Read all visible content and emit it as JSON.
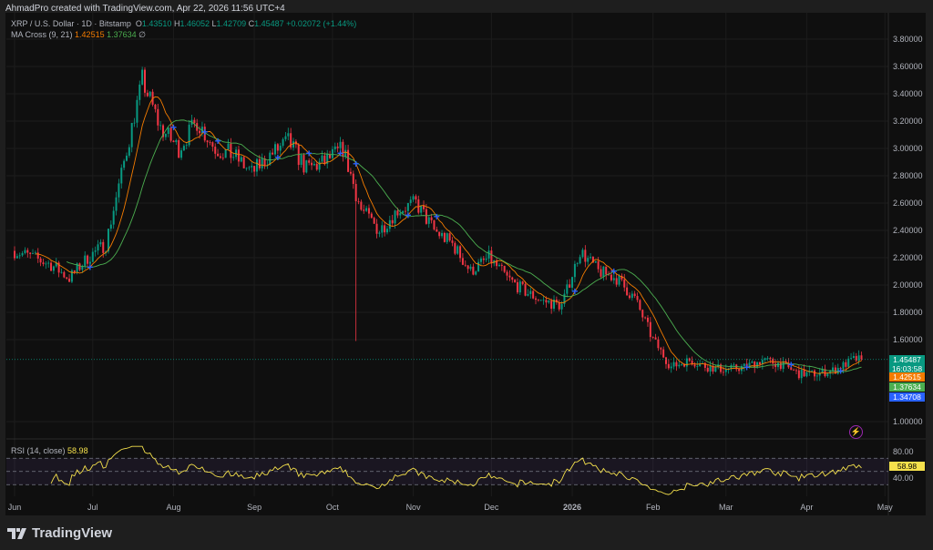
{
  "credit": "AhmadPro created with TradingView.com, Apr 22, 2026 11:56 UTC+4",
  "legend": {
    "symbol": "XRP / U.S. Dollar · 1D · Bitstamp",
    "o_label": "O",
    "o": "1.43510",
    "h_label": "H",
    "h": "1.46052",
    "l_label": "L",
    "l": "1.42709",
    "c_label": "C",
    "c": "1.45487",
    "change": "+0.02072 (+1.44%)",
    "ma_label": "MA Cross (9, 21)",
    "ma_fast": "1.42515",
    "ma_slow": "1.37634",
    "ma_icon": "∅",
    "rsi_label": "RSI (14, close)",
    "rsi_value": "58.98"
  },
  "price_tags": {
    "last": "1.45487",
    "countdown": "16:03:58",
    "ma_fast": "1.42515",
    "ma_slow": "1.37634",
    "cross": "1.34708"
  },
  "colors": {
    "up": "#089981",
    "down": "#f23645",
    "ma_fast": "#f57c00",
    "ma_slow": "#4caf50",
    "cross": "#2962ff",
    "rsi": "#f5e14c",
    "bg": "#0f0f0f"
  },
  "brand": "TradingView",
  "chart_data": {
    "type": "candlestick",
    "symbol": "XRPUSD",
    "interval": "1D",
    "yaxis_ticks": [
      "3.80000",
      "3.60000",
      "3.40000",
      "3.20000",
      "3.00000",
      "2.80000",
      "2.60000",
      "2.40000",
      "2.20000",
      "2.00000",
      "1.80000",
      "1.60000",
      "1.00000"
    ],
    "ylim": [
      0.9,
      3.9
    ],
    "xaxis_ticks": [
      "Jun",
      "Jul",
      "Aug",
      "Sep",
      "Oct",
      "Nov",
      "Dec",
      "2026",
      "Feb",
      "Mar",
      "Apr",
      "May"
    ],
    "weekly_closes_approx": [
      [
        "2025-06-01",
        2.25
      ],
      [
        "2025-06-08",
        2.2
      ],
      [
        "2025-06-15",
        2.15
      ],
      [
        "2025-06-22",
        2.05
      ],
      [
        "2025-06-29",
        2.2
      ],
      [
        "2025-07-06",
        2.3
      ],
      [
        "2025-07-13",
        2.9
      ],
      [
        "2025-07-20",
        3.5
      ],
      [
        "2025-07-27",
        3.15
      ],
      [
        "2025-08-03",
        3.0
      ],
      [
        "2025-08-10",
        3.2
      ],
      [
        "2025-08-17",
        3.0
      ],
      [
        "2025-08-24",
        2.95
      ],
      [
        "2025-08-31",
        2.82
      ],
      [
        "2025-09-07",
        2.95
      ],
      [
        "2025-09-14",
        3.05
      ],
      [
        "2025-09-21",
        2.85
      ],
      [
        "2025-09-28",
        2.9
      ],
      [
        "2025-10-05",
        3.0
      ],
      [
        "2025-10-12",
        2.55
      ],
      [
        "2025-10-19",
        2.4
      ],
      [
        "2025-10-26",
        2.55
      ],
      [
        "2025-11-02",
        2.6
      ],
      [
        "2025-11-09",
        2.4
      ],
      [
        "2025-11-16",
        2.3
      ],
      [
        "2025-11-23",
        2.1
      ],
      [
        "2025-11-30",
        2.2
      ],
      [
        "2025-12-07",
        2.05
      ],
      [
        "2025-12-14",
        1.95
      ],
      [
        "2025-12-21",
        1.88
      ],
      [
        "2025-12-28",
        1.85
      ],
      [
        "2026-01-04",
        2.25
      ],
      [
        "2026-01-11",
        2.1
      ],
      [
        "2026-01-18",
        2.05
      ],
      [
        "2026-01-25",
        1.9
      ],
      [
        "2026-02-01",
        1.6
      ],
      [
        "2026-02-08",
        1.4
      ],
      [
        "2026-02-15",
        1.45
      ],
      [
        "2026-02-22",
        1.4
      ],
      [
        "2026-03-01",
        1.38
      ],
      [
        "2026-03-08",
        1.4
      ],
      [
        "2026-03-15",
        1.45
      ],
      [
        "2026-03-22",
        1.42
      ],
      [
        "2026-03-29",
        1.35
      ],
      [
        "2026-04-05",
        1.35
      ],
      [
        "2026-04-12",
        1.38
      ],
      [
        "2026-04-19",
        1.45487
      ]
    ],
    "notable_wicks": [
      {
        "date": "2025-10-10",
        "low": 1.59
      }
    ],
    "indicators": {
      "ma_cross": {
        "fast": 9,
        "slow": 21
      },
      "rsi": {
        "length": 14,
        "bands": [
          70,
          50,
          30
        ],
        "ticks": [
          "80.00",
          "40.00"
        ]
      }
    }
  }
}
